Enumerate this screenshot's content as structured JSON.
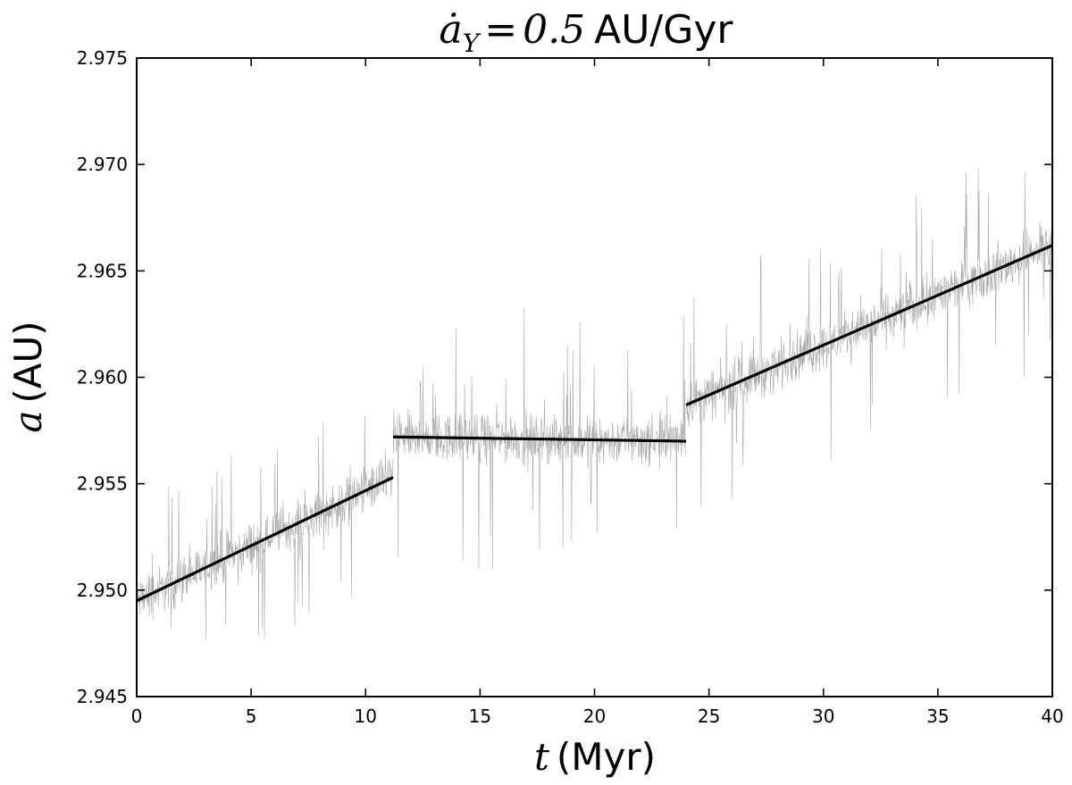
{
  "chart_data": {
    "type": "line",
    "title": {
      "symbol": "ȧ",
      "subscript": "Y",
      "equals": "=",
      "value": "0.5",
      "unit": "AU/Gyr"
    },
    "xlabel": {
      "symbol": "t",
      "unit": "(Myr)"
    },
    "ylabel": {
      "symbol": "a",
      "unit": "(AU)"
    },
    "xlim": [
      0,
      40
    ],
    "ylim": [
      2.945,
      2.975
    ],
    "xticks": [
      0,
      5,
      10,
      15,
      20,
      25,
      30,
      35,
      40
    ],
    "yticks": [
      2.945,
      2.95,
      2.955,
      2.96,
      2.965,
      2.97,
      2.975
    ],
    "ytick_labels": [
      "2.945",
      "2.950",
      "2.955",
      "2.960",
      "2.965",
      "2.970",
      "2.975"
    ],
    "grid": false,
    "noisy_series": {
      "color": "#8c8c8c",
      "segments": [
        {
          "t_start": 0.0,
          "t_end": 11.2,
          "a_start": 2.9495,
          "a_end": 2.9553,
          "amplitude": 0.0011,
          "spike_max": 0.0048
        },
        {
          "t_start": 11.2,
          "t_end": 24.0,
          "a_start": 2.9572,
          "a_end": 2.957,
          "amplitude": 0.0011,
          "spike_max": 0.0062
        },
        {
          "t_start": 24.0,
          "t_end": 40.0,
          "a_start": 2.9587,
          "a_end": 2.9662,
          "amplitude": 0.0011,
          "spike_max": 0.0058
        }
      ]
    },
    "fit_lines": {
      "color": "#000000",
      "segments": [
        {
          "x": [
            0.0,
            11.2
          ],
          "y": [
            2.9495,
            2.9553
          ]
        },
        {
          "x": [
            11.2,
            24.0
          ],
          "y": [
            2.9572,
            2.957
          ]
        },
        {
          "x": [
            24.0,
            40.0
          ],
          "y": [
            2.9587,
            2.9662
          ]
        }
      ]
    }
  }
}
